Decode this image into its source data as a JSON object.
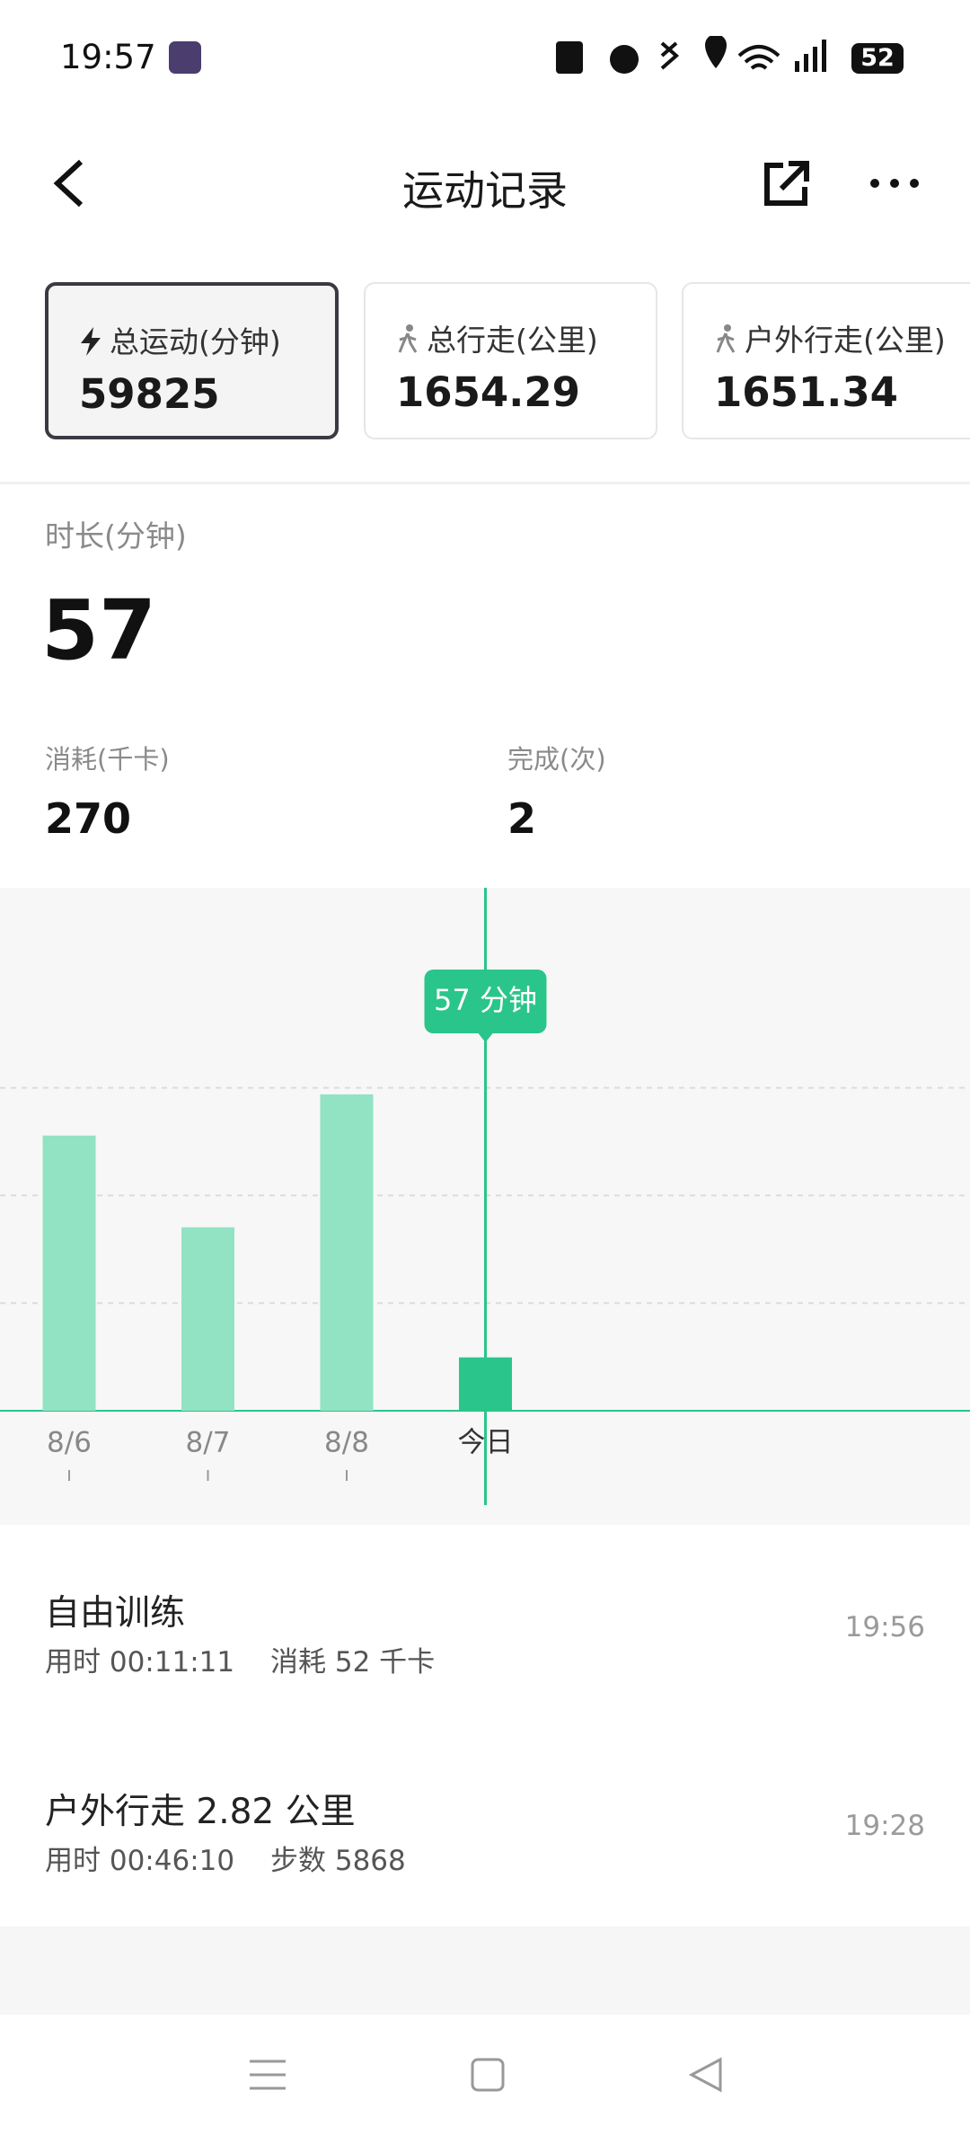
{
  "status_bar": {
    "time": "19:57",
    "battery": "52"
  },
  "header": {
    "title": "运动记录"
  },
  "summary_cards": [
    {
      "label": "总运动(分钟)",
      "value": "59825"
    },
    {
      "label": "总行走(公里)",
      "value": "1654.29"
    },
    {
      "label": "户外行走(公里)",
      "value": "1651.34"
    }
  ],
  "stats": {
    "duration_label": "时长(分钟)",
    "duration": "57",
    "calories_label": "消耗(千卡)",
    "calories": "270",
    "completed_label": "完成(次)",
    "completed": "2"
  },
  "chart_data": {
    "type": "bar",
    "categories": [
      "8/6",
      "8/7",
      "8/8",
      "今日"
    ],
    "values": [
      294,
      196,
      338,
      57
    ],
    "value_labels": [
      null,
      null,
      null,
      "57 分钟"
    ],
    "color": "#92e3c3",
    "highlight_color": "#2ac58a",
    "highlight_index": 3,
    "ylim": [
      0,
      360
    ],
    "yticks": [
      115,
      230,
      345
    ],
    "grid": true
  },
  "records": [
    {
      "title": "自由训练",
      "duration": "用时 00:11:11",
      "detail": "消耗 52 千卡",
      "time": "19:56"
    },
    {
      "title": "户外行走 2.82 公里",
      "duration": "用时 00:46:10",
      "detail": "步数 5868",
      "time": "19:28"
    }
  ]
}
